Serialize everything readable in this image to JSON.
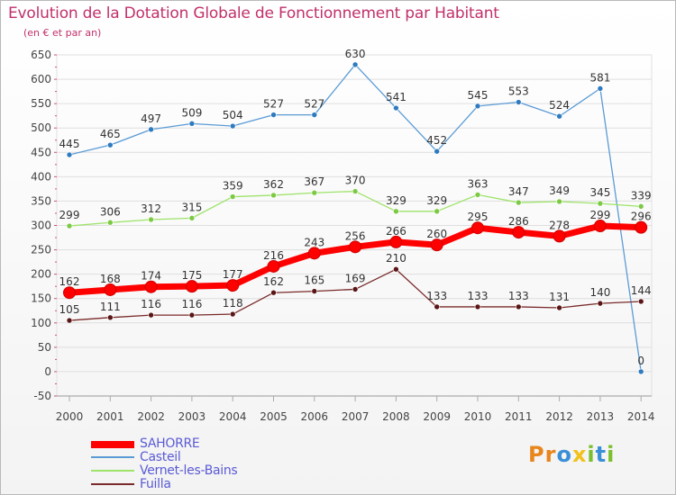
{
  "title": "Evolution de la Dotation Globale de Fonctionnement par Habitant",
  "subtitle": "(en € et par an)",
  "logo": {
    "text": "Proxiti",
    "letters": [
      "P",
      "r",
      "o",
      "x",
      "i",
      "t",
      "i"
    ],
    "colors": [
      "#e8851c",
      "#e8851c",
      "#3a8fd6",
      "#f2c21a",
      "#7cbf2e",
      "#3a8fd6",
      "#7cbf2e"
    ]
  },
  "chart_data": {
    "type": "line",
    "title": "Evolution de la Dotation Globale de Fonctionnement par Habitant",
    "subtitle": "(en € et par an)",
    "x": [
      "2000",
      "2001",
      "2002",
      "2003",
      "2004",
      "2005",
      "2006",
      "2007",
      "2008",
      "2009",
      "2010",
      "2011",
      "2012",
      "2013",
      "2014"
    ],
    "ylim": [
      -50,
      650
    ],
    "yticks": [
      -50,
      0,
      50,
      100,
      150,
      200,
      250,
      300,
      350,
      400,
      450,
      500,
      550,
      600,
      650
    ],
    "grid": true,
    "legend_position": "bottom-left",
    "series": [
      {
        "name": "Casteil",
        "color": "#5b9bd5",
        "marker": "#2f7bbf",
        "weight": "thin",
        "values": [
          445,
          465,
          497,
          509,
          504,
          527,
          527,
          630,
          541,
          452,
          545,
          553,
          524,
          581,
          0
        ]
      },
      {
        "name": "Vernet-les-Bains",
        "color": "#9ee36a",
        "marker": "#7cc944",
        "weight": "thin",
        "values": [
          299,
          306,
          312,
          315,
          359,
          362,
          367,
          370,
          329,
          329,
          363,
          347,
          349,
          345,
          339
        ]
      },
      {
        "name": "Fuilla",
        "color": "#7a2a2a",
        "marker": "#5a1616",
        "weight": "thin",
        "values": [
          105,
          111,
          116,
          116,
          118,
          162,
          165,
          169,
          210,
          133,
          133,
          133,
          131,
          140,
          144
        ]
      },
      {
        "name": "SAHORRE",
        "color": "#ff0000",
        "marker": "#ff0000",
        "weight": "thick",
        "values": [
          162,
          168,
          174,
          175,
          177,
          216,
          243,
          256,
          266,
          260,
          295,
          286,
          278,
          299,
          296
        ]
      }
    ]
  },
  "legend": [
    {
      "label": "SAHORRE",
      "color": "#ff0000",
      "weight": "thick"
    },
    {
      "label": "Casteil",
      "color": "#5b9bd5",
      "weight": "thin"
    },
    {
      "label": "Vernet-les-Bains",
      "color": "#9ee36a",
      "weight": "thin"
    },
    {
      "label": "Fuilla",
      "color": "#7a2a2a",
      "weight": "thin"
    }
  ]
}
